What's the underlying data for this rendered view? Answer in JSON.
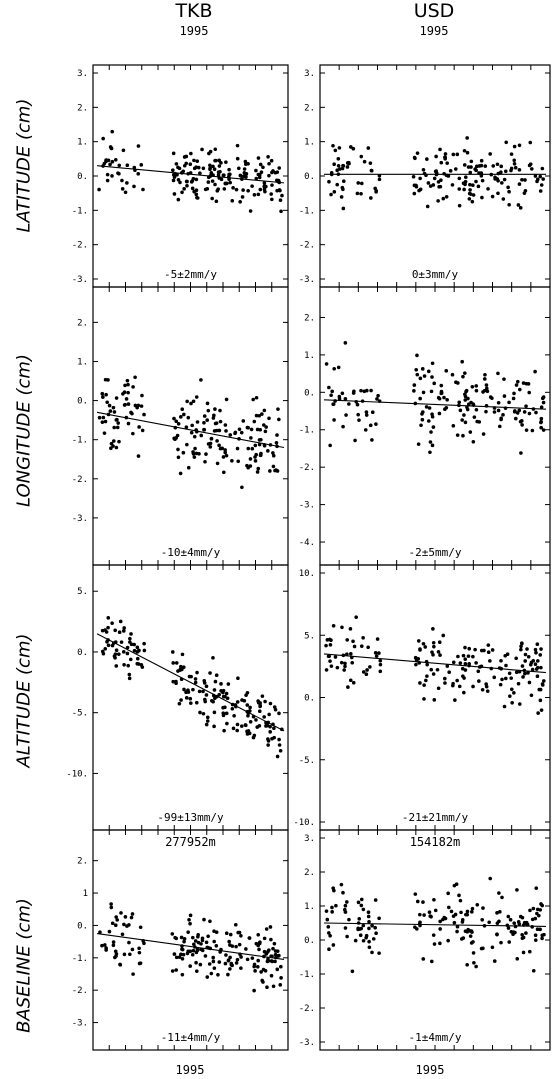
{
  "columns": [
    {
      "station": "TKB",
      "year": "1995"
    },
    {
      "station": "USD",
      "year": "1995"
    }
  ],
  "rows": [
    {
      "label": "LATITUDE (cm)"
    },
    {
      "label": "LONGITUDE (cm)"
    },
    {
      "label": "ALTITUDE (cm)"
    },
    {
      "label": "BASELINE (cm)"
    }
  ],
  "bottom_year_labels": [
    "1995",
    "1995"
  ],
  "chart_data": [
    {
      "type": "scatter",
      "station": "TKB",
      "component": "LATITUDE (cm)",
      "ylim": [
        -3,
        3
      ],
      "yticks": [
        "3.",
        "2.",
        "1.",
        "0.",
        "-1.",
        "-2.",
        "-3."
      ],
      "trend": "-5±2mm/y",
      "trend_start": 0.3,
      "trend_end": -0.2,
      "baseline_length": "",
      "seed": 11,
      "center": 0.1,
      "spread": 0.45,
      "n": 190
    },
    {
      "type": "scatter",
      "station": "USD",
      "component": "LATITUDE (cm)",
      "ylim": [
        -3,
        3
      ],
      "yticks": [
        "3.",
        "2.",
        "1.",
        "0.",
        "-1.",
        "-2.",
        "-3."
      ],
      "trend": "0±3mm/y",
      "trend_start": 0.05,
      "trend_end": 0.05,
      "baseline_length": "",
      "seed": 23,
      "center": 0.1,
      "spread": 0.55,
      "n": 180
    },
    {
      "type": "scatter",
      "station": "TKB",
      "component": "LONGITUDE (cm)",
      "ylim": [
        -4,
        2.7
      ],
      "yticks": [
        "2.",
        "1.",
        "0.",
        "-1.",
        "-2.",
        "-3."
      ],
      "trend": "-10±4mm/y",
      "trend_start": -0.3,
      "trend_end": -1.2,
      "baseline_length": "",
      "seed": 37,
      "center": -0.6,
      "spread": 0.6,
      "n": 190
    },
    {
      "type": "scatter",
      "station": "USD",
      "component": "LONGITUDE (cm)",
      "ylim": [
        -4.4,
        2.6
      ],
      "yticks": [
        "2.",
        "1.",
        "0.",
        "-1.",
        "-2.",
        "-3.",
        "-4."
      ],
      "trend": "-2±5mm/y",
      "trend_start": -0.2,
      "trend_end": -0.45,
      "baseline_length": "",
      "seed": 41,
      "center": -0.3,
      "spread": 0.7,
      "n": 180
    },
    {
      "type": "scatter",
      "station": "TKB",
      "component": "ALTITUDE (cm)",
      "ylim": [
        -14,
        6.5
      ],
      "yticks": [
        "5.",
        "0.",
        "-5.",
        "-10."
      ],
      "trend": "-99±13mm/y",
      "trend_start": 1.5,
      "trend_end": -6.5,
      "baseline_length": "",
      "seed": 53,
      "center": -2,
      "spread": 1.5,
      "n": 190
    },
    {
      "type": "scatter",
      "station": "USD",
      "component": "ALTITUDE (cm)",
      "ylim": [
        -10,
        10
      ],
      "yticks": [
        "10.",
        "5.",
        "0.",
        "-5.",
        "-10."
      ],
      "trend": "-21±21mm/y",
      "trend_start": 3.5,
      "trend_end": 2.0,
      "baseline_length": "",
      "seed": 67,
      "center": 2.5,
      "spread": 1.7,
      "n": 180
    },
    {
      "type": "scatter",
      "station": "TKB",
      "component": "BASELINE (cm)",
      "ylim": [
        -3.6,
        2.7
      ],
      "yticks": [
        "2.",
        "1",
        "0.",
        "-1.",
        "-2.",
        "-3."
      ],
      "trend": "-11±4mm/y",
      "trend_start": -0.25,
      "trend_end": -1.05,
      "baseline_length": "277952m",
      "seed": 79,
      "center": -0.7,
      "spread": 0.6,
      "n": 190
    },
    {
      "type": "scatter",
      "station": "USD",
      "component": "BASELINE (cm)",
      "ylim": [
        -3,
        3
      ],
      "yticks": [
        "3.",
        "2.",
        "1.",
        "0.",
        "-1.",
        "-2.",
        "-3."
      ],
      "trend": "-1±4mm/y",
      "trend_start": 0.5,
      "trend_end": 0.4,
      "baseline_length": "154182m",
      "seed": 97,
      "center": 0.5,
      "spread": 0.65,
      "n": 180
    }
  ]
}
